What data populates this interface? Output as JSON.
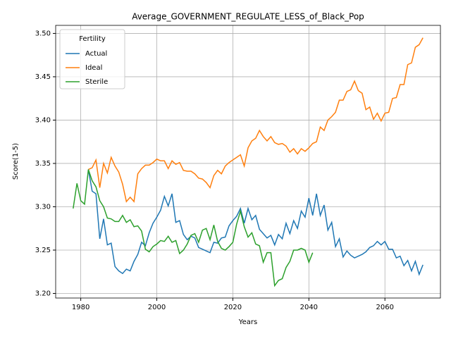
{
  "chart_data": {
    "type": "line",
    "title": "Average_GOVERNMENT_REGULATE_LESS_of_Black_Pop",
    "x_label": "Years",
    "y_label": "Score(1-5)",
    "x": [
      1978,
      1979,
      1980,
      1981,
      1982,
      1983,
      1984,
      1985,
      1986,
      1987,
      1988,
      1989,
      1990,
      1991,
      1992,
      1993,
      1994,
      1995,
      1996,
      1997,
      1998,
      1999,
      2000,
      2001,
      2002,
      2003,
      2004,
      2005,
      2006,
      2007,
      2008,
      2009,
      2010,
      2011,
      2012,
      2013,
      2014,
      2015,
      2016,
      2017,
      2018,
      2019,
      2020,
      2021,
      2022,
      2023,
      2024,
      2025,
      2026,
      2027,
      2028,
      2029,
      2030,
      2031,
      2032,
      2033,
      2034,
      2035,
      2036,
      2037,
      2038,
      2039,
      2040,
      2041,
      2042,
      2043,
      2044,
      2045,
      2046,
      2047,
      2048,
      2049,
      2050,
      2051,
      2052,
      2053,
      2054,
      2055,
      2056,
      2057,
      2058,
      2059,
      2060,
      2061,
      2062,
      2063,
      2064,
      2065,
      2066,
      2067,
      2068,
      2069,
      2070
    ],
    "series": [
      {
        "name": "Actual",
        "color": "#1f77b4",
        "values": [
          null,
          null,
          null,
          null,
          3.343,
          3.318,
          3.315,
          3.263,
          3.286,
          3.256,
          3.258,
          3.231,
          3.226,
          3.223,
          3.228,
          3.226,
          3.237,
          3.245,
          3.259,
          3.255,
          3.27,
          3.281,
          3.288,
          3.296,
          3.312,
          3.301,
          3.315,
          3.282,
          3.284,
          3.268,
          3.262,
          3.266,
          3.264,
          3.253,
          3.251,
          3.249,
          3.247,
          3.259,
          3.258,
          3.264,
          3.265,
          3.278,
          3.284,
          3.289,
          3.298,
          3.281,
          3.298,
          3.285,
          3.29,
          3.274,
          3.269,
          3.264,
          3.267,
          3.256,
          3.268,
          3.263,
          3.281,
          3.269,
          3.284,
          3.275,
          3.295,
          3.288,
          3.31,
          3.29,
          3.315,
          3.29,
          3.302,
          3.273,
          3.282,
          3.254,
          3.263,
          3.242,
          3.249,
          3.244,
          3.241,
          3.243,
          3.245,
          3.248,
          3.253,
          3.255,
          3.26,
          3.256,
          3.26,
          3.251,
          3.251,
          3.241,
          3.243,
          3.232,
          3.238,
          3.226,
          3.237,
          3.222,
          3.233
        ]
      },
      {
        "name": "Ideal",
        "color": "#ff7f0e",
        "values": [
          null,
          null,
          null,
          null,
          3.343,
          3.345,
          3.354,
          3.322,
          3.35,
          3.339,
          3.357,
          3.347,
          3.34,
          3.326,
          3.306,
          3.311,
          3.306,
          3.338,
          3.344,
          3.348,
          3.348,
          3.351,
          3.355,
          3.353,
          3.353,
          3.344,
          3.353,
          3.349,
          3.351,
          3.342,
          3.341,
          3.341,
          3.338,
          3.333,
          3.332,
          3.328,
          3.322,
          3.336,
          3.342,
          3.338,
          3.347,
          3.351,
          3.354,
          3.357,
          3.36,
          3.347,
          3.368,
          3.376,
          3.379,
          3.388,
          3.381,
          3.376,
          3.381,
          3.374,
          3.372,
          3.373,
          3.37,
          3.363,
          3.367,
          3.361,
          3.367,
          3.364,
          3.368,
          3.373,
          3.375,
          3.392,
          3.388,
          3.4,
          3.404,
          3.409,
          3.423,
          3.423,
          3.433,
          3.435,
          3.445,
          3.434,
          3.431,
          3.412,
          3.415,
          3.401,
          3.408,
          3.399,
          3.408,
          3.409,
          3.425,
          3.426,
          3.441,
          3.441,
          3.464,
          3.466,
          3.484,
          3.487,
          3.495
        ]
      },
      {
        "name": "Sterile",
        "color": "#2ca02c",
        "values": [
          3.298,
          3.327,
          3.307,
          3.303,
          3.343,
          3.33,
          3.323,
          3.307,
          3.3,
          3.287,
          3.286,
          3.283,
          3.283,
          3.29,
          3.282,
          3.285,
          3.277,
          3.278,
          3.272,
          3.251,
          3.248,
          3.254,
          3.257,
          3.261,
          3.26,
          3.266,
          3.259,
          3.261,
          3.246,
          3.25,
          3.257,
          3.267,
          3.269,
          3.259,
          3.273,
          3.275,
          3.262,
          3.279,
          3.26,
          3.252,
          3.25,
          3.254,
          3.259,
          3.28,
          3.295,
          3.277,
          3.265,
          3.27,
          3.257,
          3.255,
          3.236,
          3.247,
          3.247,
          3.209,
          3.215,
          3.217,
          3.23,
          3.237,
          3.25,
          3.25,
          3.252,
          3.25,
          3.236,
          3.247,
          null,
          null,
          null,
          null,
          null,
          null,
          null,
          null,
          null,
          null,
          null,
          null,
          null,
          null,
          null,
          null,
          null,
          null,
          null,
          null,
          null,
          null,
          null,
          null,
          null,
          null,
          null,
          null,
          null
        ]
      }
    ],
    "xlim": [
      1973.4,
      2074.6
    ],
    "xticks": [
      1980,
      2000,
      2020,
      2040,
      2060
    ],
    "ylim": [
      3.1947,
      3.5093
    ],
    "yticks": [
      {
        "value": 3.2,
        "label": "3.20"
      },
      3.25,
      {
        "value": 3.3,
        "label": "3.30"
      },
      3.35,
      {
        "value": 3.4,
        "label": "3.40"
      },
      3.45,
      {
        "value": 3.5,
        "label": "3.50"
      }
    ],
    "grid": true,
    "legend_title": "Fertility",
    "legend_position": "upper-left"
  }
}
